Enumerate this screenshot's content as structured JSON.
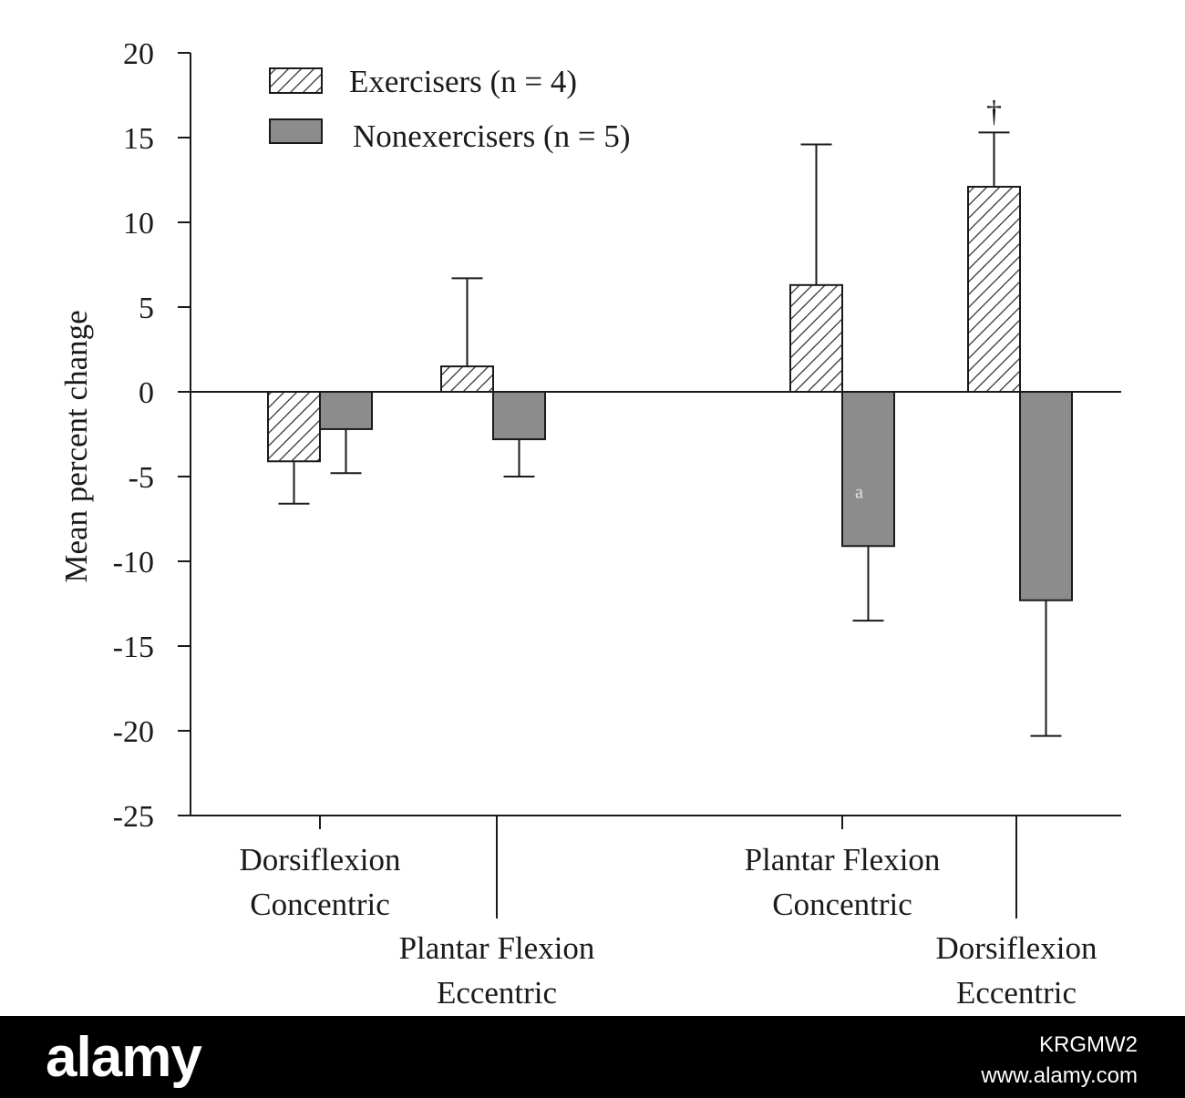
{
  "chart_data": {
    "type": "bar",
    "ylabel": "Mean percent change",
    "xlabel": "",
    "ylim": [
      -25,
      20
    ],
    "yticks": [
      20,
      15,
      10,
      5,
      0,
      -5,
      -10,
      -15,
      -20,
      -25
    ],
    "categories": [
      [
        "Dorsiflexion",
        "Concentric"
      ],
      [
        "Plantar Flexion",
        "Eccentric"
      ],
      [
        "Plantar Flexion",
        "Concentric"
      ],
      [
        "Dorsiflexion",
        "Eccentric"
      ]
    ],
    "series": [
      {
        "name": "Exercisers (n = 4)",
        "pattern": "hatched",
        "color": "#ffffff",
        "values": [
          -4.1,
          1.5,
          6.3,
          12.1
        ],
        "errors": [
          2.5,
          5.2,
          8.3,
          3.2
        ]
      },
      {
        "name": "Nonexercisers (n = 5)",
        "pattern": "solid",
        "color": "#8c8c8c",
        "values": [
          -2.2,
          -2.8,
          -9.1,
          -12.3
        ],
        "errors": [
          2.6,
          2.2,
          4.4,
          8.0
        ]
      }
    ],
    "annotations": [
      {
        "text": "†",
        "series": 0,
        "category": 3
      },
      {
        "text": "a",
        "series": 1,
        "category": 2
      }
    ],
    "legend": "top-left",
    "grid": false
  },
  "footer": {
    "brand": "alamy",
    "code": "KRGMW2",
    "url": "www.alamy.com"
  }
}
